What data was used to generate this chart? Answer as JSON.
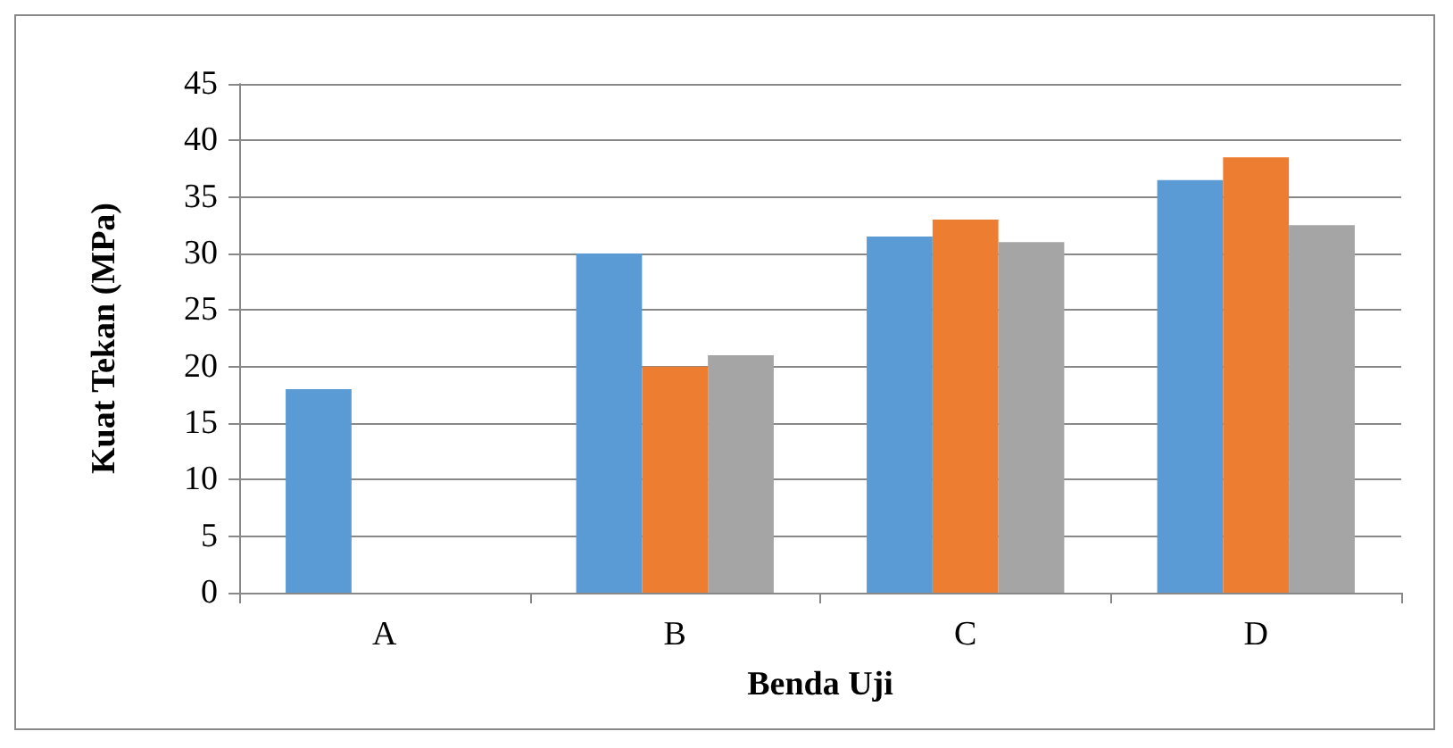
{
  "chart_data": {
    "type": "bar",
    "xlabel": "Benda Uji",
    "ylabel": "Kuat Tekan (MPa)",
    "categories": [
      "A",
      "B",
      "C",
      "D"
    ],
    "series": [
      {
        "color": "#5b9bd5",
        "values": [
          18,
          30,
          31.5,
          36.5
        ]
      },
      {
        "color": "#ed7d31",
        "values": [
          null,
          20,
          33,
          38.5
        ]
      },
      {
        "color": "#a5a5a5",
        "values": [
          null,
          21,
          31,
          32.5
        ]
      }
    ],
    "ylim": [
      0,
      45
    ],
    "yticks": [
      0,
      5,
      10,
      15,
      20,
      25,
      30,
      35,
      40,
      45
    ],
    "grid": "y"
  }
}
